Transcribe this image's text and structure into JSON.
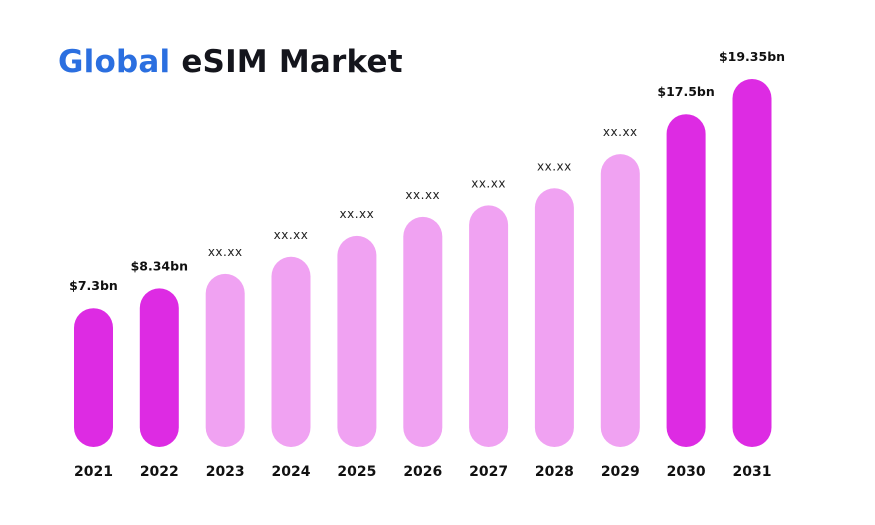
{
  "chart_data": {
    "type": "bar",
    "title": "Global eSIM Market",
    "title_accent": "Global",
    "title_rest": "eSIM Market",
    "xlabel": "",
    "ylabel": "",
    "unit": "USD billions",
    "ylim": [
      0,
      20
    ],
    "grid": false,
    "legend": "none",
    "categories": [
      "2021",
      "2022",
      "2023",
      "2024",
      "2025",
      "2026",
      "2027",
      "2028",
      "2029",
      "2030",
      "2031"
    ],
    "values": [
      7.3,
      8.34,
      null,
      null,
      null,
      null,
      null,
      null,
      null,
      17.5,
      19.35
    ],
    "estimated_values_from_bar_height": [
      7.3,
      8.34,
      9.1,
      10.0,
      11.1,
      12.1,
      12.7,
      13.6,
      15.4,
      17.5,
      19.35
    ],
    "labels": [
      "$7.3bn",
      "$8.34bn",
      "xx.xx",
      "xx.xx",
      "xx.xx",
      "xx.xx",
      "xx.xx",
      "xx.xx",
      "xx.xx",
      "$17.5bn",
      "$19.35bn"
    ],
    "highlighted": [
      true,
      true,
      false,
      false,
      false,
      false,
      false,
      false,
      false,
      true,
      true
    ]
  },
  "colors": {
    "title_accent": "#2b6fe0",
    "title": "#14151c",
    "bar_highlight": "#dd2be3",
    "bar_forecast": "#f0a2f2"
  }
}
